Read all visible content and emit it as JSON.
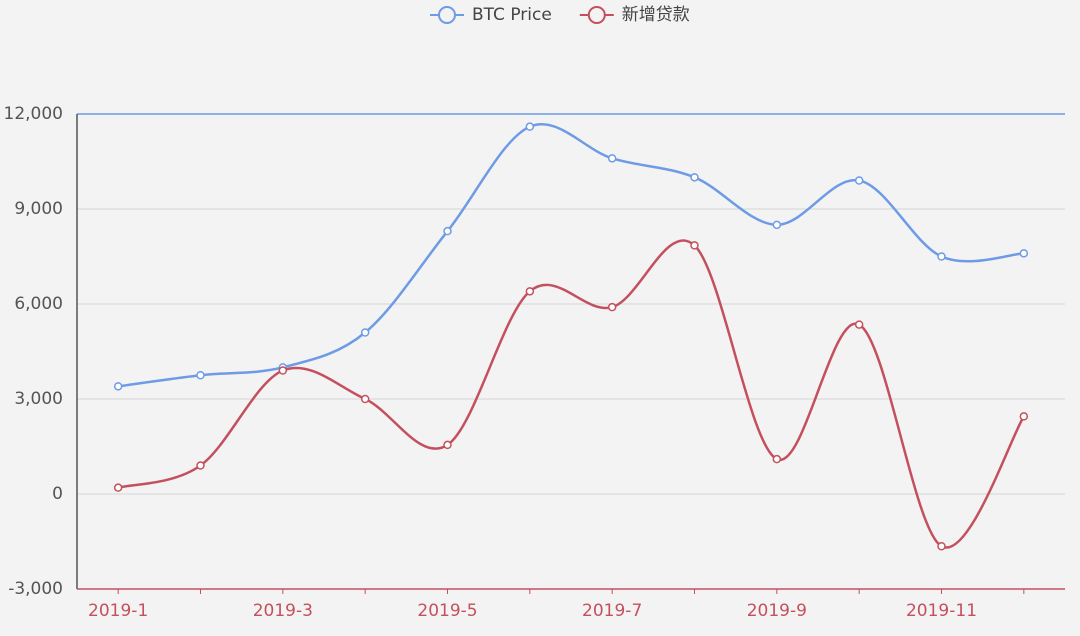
{
  "chart_data": {
    "type": "line",
    "categories": [
      "2019-1",
      null,
      "2019-3",
      null,
      "2019-5",
      null,
      "2019-7",
      null,
      "2019-9",
      null,
      "2019-11",
      null
    ],
    "series": [
      {
        "name": "BTC Price",
        "color": "#6e9be6",
        "values": [
          3400,
          3750,
          4000,
          5100,
          8300,
          11600,
          10600,
          10000,
          8500,
          9900,
          7500,
          7600
        ]
      },
      {
        "name": "新增贷款",
        "color": "#c4505e",
        "values": [
          200,
          900,
          3900,
          3000,
          1550,
          6400,
          5900,
          7850,
          1100,
          5350,
          -1650,
          2450
        ]
      }
    ],
    "ylim": [
      -3000,
      12000
    ],
    "yticks": [
      {
        "value": -3000,
        "label": "-3,000"
      },
      0,
      {
        "value": 3000,
        "label": "3,000"
      },
      {
        "value": 6000,
        "label": "6,000"
      },
      {
        "value": 9000,
        "label": "9,000"
      },
      {
        "value": 12000,
        "label": "12,000"
      }
    ],
    "grid": true,
    "smooth": true,
    "legend": "top"
  }
}
